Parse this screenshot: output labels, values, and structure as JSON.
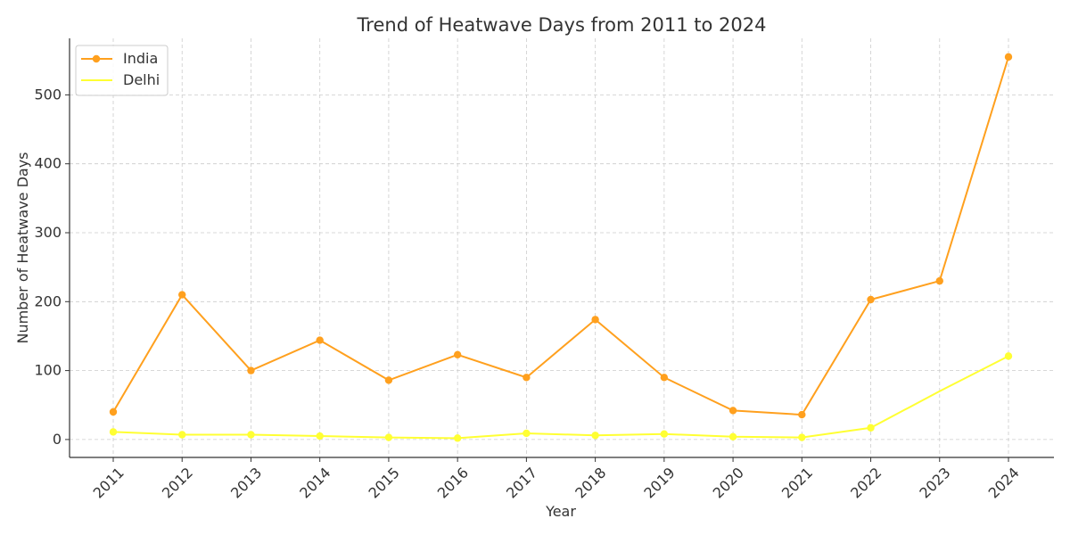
{
  "chart_data": {
    "type": "line",
    "title": "Trend of Heatwave Days from 2011 to 2024",
    "xlabel": "Year",
    "ylabel": "Number of Heatwave Days",
    "categories": [
      "2011",
      "2012",
      "2013",
      "2014",
      "2015",
      "2016",
      "2017",
      "2018",
      "2019",
      "2020",
      "2021",
      "2022",
      "2023",
      "2024"
    ],
    "yticks": [
      0,
      100,
      200,
      300,
      400,
      500
    ],
    "ylim": [
      -26,
      582
    ],
    "grid": true,
    "legend_position": "top-left",
    "series": [
      {
        "name": "India",
        "color": "#FFA01E",
        "markers": true,
        "values": [
          40,
          210,
          100,
          144,
          86,
          123,
          90,
          174,
          90,
          42,
          36,
          203,
          230,
          555
        ]
      },
      {
        "name": "Delhi",
        "color": "#FFFF33",
        "markers": "partial",
        "marker_indices": [
          0,
          1,
          2,
          3,
          4,
          5,
          6,
          7,
          8,
          9,
          10,
          11,
          13
        ],
        "values": [
          11,
          7,
          7,
          5,
          3,
          2,
          9,
          6,
          8,
          4,
          3,
          17,
          70,
          121
        ]
      }
    ]
  }
}
